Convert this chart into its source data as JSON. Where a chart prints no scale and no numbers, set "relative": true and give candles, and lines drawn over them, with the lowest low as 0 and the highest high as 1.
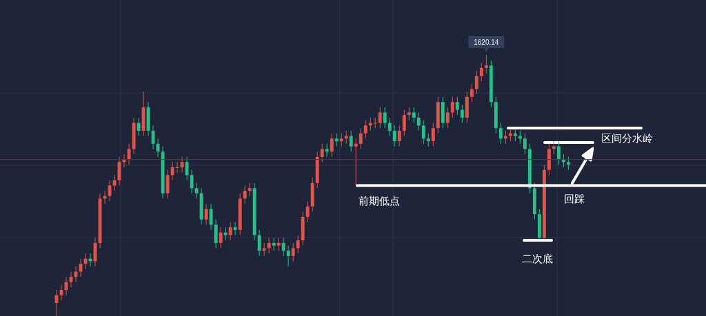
{
  "chart_data": {
    "type": "candlestick",
    "relative": true,
    "grid": true,
    "categories": [
      null,
      null,
      null,
      null,
      null,
      null,
      null,
      null,
      null,
      null,
      null,
      null,
      null,
      null,
      null,
      null,
      null,
      null,
      null,
      null,
      null,
      null,
      null,
      null,
      null,
      null,
      null,
      null,
      null,
      null,
      null,
      null,
      null,
      null,
      null,
      null,
      null,
      null,
      null,
      null,
      null,
      null,
      null,
      null,
      null,
      null,
      null,
      null,
      null,
      null,
      null,
      null,
      null,
      null,
      null,
      null,
      null,
      null,
      null,
      null,
      null,
      null,
      null,
      null,
      null,
      null,
      null,
      null,
      null,
      null,
      null,
      null,
      null,
      null,
      null,
      null,
      null,
      null,
      null,
      null,
      null,
      null,
      null,
      null,
      null,
      null,
      null,
      null,
      null,
      null,
      null,
      null,
      null,
      null,
      null,
      null,
      null,
      null,
      null,
      null,
      null,
      null,
      null,
      null,
      null,
      null,
      null
    ],
    "ohlc": [
      [
        0.05,
        0.1,
        0.0,
        0.08
      ],
      [
        0.08,
        0.12,
        0.06,
        0.1
      ],
      [
        0.1,
        0.15,
        0.08,
        0.13
      ],
      [
        0.13,
        0.17,
        0.11,
        0.15
      ],
      [
        0.15,
        0.19,
        0.13,
        0.17
      ],
      [
        0.17,
        0.22,
        0.15,
        0.2
      ],
      [
        0.2,
        0.24,
        0.18,
        0.22
      ],
      [
        0.22,
        0.24,
        0.19,
        0.21
      ],
      [
        0.21,
        0.3,
        0.19,
        0.28
      ],
      [
        0.28,
        0.47,
        0.26,
        0.45
      ],
      [
        0.45,
        0.48,
        0.43,
        0.46
      ],
      [
        0.46,
        0.52,
        0.44,
        0.5
      ],
      [
        0.5,
        0.54,
        0.48,
        0.52
      ],
      [
        0.52,
        0.61,
        0.5,
        0.59
      ],
      [
        0.59,
        0.62,
        0.57,
        0.6
      ],
      [
        0.6,
        0.66,
        0.58,
        0.64
      ],
      [
        0.64,
        0.76,
        0.62,
        0.74
      ],
      [
        0.74,
        0.76,
        0.69,
        0.71
      ],
      [
        0.71,
        0.86,
        0.69,
        0.8
      ],
      [
        0.8,
        0.82,
        0.69,
        0.71
      ],
      [
        0.71,
        0.73,
        0.64,
        0.66
      ],
      [
        0.66,
        0.68,
        0.61,
        0.63
      ],
      [
        0.63,
        0.65,
        0.45,
        0.47
      ],
      [
        0.47,
        0.56,
        0.45,
        0.54
      ],
      [
        0.54,
        0.59,
        0.52,
        0.57
      ],
      [
        0.57,
        0.59,
        0.55,
        0.57
      ],
      [
        0.57,
        0.61,
        0.55,
        0.59
      ],
      [
        0.59,
        0.61,
        0.52,
        0.54
      ],
      [
        0.54,
        0.56,
        0.47,
        0.49
      ],
      [
        0.49,
        0.51,
        0.45,
        0.47
      ],
      [
        0.47,
        0.49,
        0.35,
        0.37
      ],
      [
        0.37,
        0.43,
        0.35,
        0.41
      ],
      [
        0.41,
        0.43,
        0.33,
        0.35
      ],
      [
        0.35,
        0.37,
        0.26,
        0.28
      ],
      [
        0.28,
        0.34,
        0.26,
        0.32
      ],
      [
        0.32,
        0.34,
        0.29,
        0.31
      ],
      [
        0.31,
        0.36,
        0.29,
        0.34
      ],
      [
        0.34,
        0.36,
        0.31,
        0.33
      ],
      [
        0.33,
        0.47,
        0.31,
        0.45
      ],
      [
        0.45,
        0.5,
        0.43,
        0.48
      ],
      [
        0.48,
        0.51,
        0.46,
        0.49
      ],
      [
        0.49,
        0.51,
        0.29,
        0.31
      ],
      [
        0.31,
        0.33,
        0.23,
        0.25
      ],
      [
        0.25,
        0.28,
        0.23,
        0.26
      ],
      [
        0.26,
        0.3,
        0.24,
        0.28
      ],
      [
        0.28,
        0.3,
        0.25,
        0.27
      ],
      [
        0.27,
        0.3,
        0.25,
        0.28
      ],
      [
        0.28,
        0.3,
        0.23,
        0.25
      ],
      [
        0.25,
        0.27,
        0.19,
        0.23
      ],
      [
        0.23,
        0.28,
        0.21,
        0.26
      ],
      [
        0.26,
        0.31,
        0.24,
        0.29
      ],
      [
        0.29,
        0.4,
        0.27,
        0.38
      ],
      [
        0.38,
        0.44,
        0.36,
        0.42
      ],
      [
        0.42,
        0.53,
        0.4,
        0.51
      ],
      [
        0.51,
        0.63,
        0.49,
        0.61
      ],
      [
        0.61,
        0.66,
        0.59,
        0.64
      ],
      [
        0.64,
        0.66,
        0.61,
        0.63
      ],
      [
        0.63,
        0.7,
        0.61,
        0.68
      ],
      [
        0.68,
        0.7,
        0.65,
        0.67
      ],
      [
        0.67,
        0.7,
        0.65,
        0.68
      ],
      [
        0.68,
        0.71,
        0.66,
        0.69
      ],
      [
        0.69,
        0.71,
        0.63,
        0.65
      ],
      [
        0.65,
        0.68,
        0.5,
        0.66
      ],
      [
        0.66,
        0.72,
        0.64,
        0.7
      ],
      [
        0.7,
        0.75,
        0.68,
        0.73
      ],
      [
        0.73,
        0.76,
        0.71,
        0.74
      ],
      [
        0.74,
        0.76,
        0.72,
        0.74
      ],
      [
        0.74,
        0.8,
        0.72,
        0.78
      ],
      [
        0.78,
        0.8,
        0.72,
        0.74
      ],
      [
        0.74,
        0.76,
        0.69,
        0.71
      ],
      [
        0.71,
        0.73,
        0.65,
        0.67
      ],
      [
        0.67,
        0.73,
        0.65,
        0.71
      ],
      [
        0.71,
        0.79,
        0.69,
        0.77
      ],
      [
        0.77,
        0.8,
        0.75,
        0.78
      ],
      [
        0.78,
        0.8,
        0.74,
        0.76
      ],
      [
        0.76,
        0.78,
        0.71,
        0.73
      ],
      [
        0.73,
        0.75,
        0.66,
        0.68
      ],
      [
        0.68,
        0.7,
        0.65,
        0.67
      ],
      [
        0.67,
        0.74,
        0.65,
        0.72
      ],
      [
        0.72,
        0.84,
        0.7,
        0.82
      ],
      [
        0.82,
        0.84,
        0.72,
        0.74
      ],
      [
        0.74,
        0.8,
        0.72,
        0.78
      ],
      [
        0.78,
        0.84,
        0.76,
        0.82
      ],
      [
        0.82,
        0.84,
        0.77,
        0.79
      ],
      [
        0.79,
        0.81,
        0.74,
        0.76
      ],
      [
        0.76,
        0.86,
        0.74,
        0.84
      ],
      [
        0.84,
        0.89,
        0.82,
        0.87
      ],
      [
        0.87,
        0.94,
        0.85,
        0.92
      ],
      [
        0.92,
        0.97,
        0.9,
        0.95
      ],
      [
        0.95,
        1.0,
        0.93,
        0.96
      ],
      [
        0.96,
        0.98,
        0.8,
        0.82
      ],
      [
        0.82,
        0.84,
        0.7,
        0.72
      ],
      [
        0.72,
        0.74,
        0.66,
        0.68
      ],
      [
        0.68,
        0.71,
        0.66,
        0.69
      ],
      [
        0.69,
        0.72,
        0.67,
        0.7
      ],
      [
        0.7,
        0.72,
        0.67,
        0.69
      ],
      [
        0.69,
        0.71,
        0.66,
        0.68
      ],
      [
        0.68,
        0.7,
        0.62,
        0.64
      ],
      [
        0.64,
        0.66,
        0.47,
        0.49
      ],
      [
        0.49,
        0.51,
        0.37,
        0.39
      ],
      [
        0.39,
        0.41,
        0.29,
        0.3
      ],
      [
        0.3,
        0.58,
        0.29,
        0.56
      ],
      [
        0.56,
        0.66,
        0.54,
        0.64
      ],
      [
        0.64,
        0.67,
        0.62,
        0.65
      ],
      [
        0.65,
        0.67,
        0.58,
        0.6
      ],
      [
        0.6,
        0.62,
        0.57,
        0.59
      ],
      [
        0.59,
        0.61,
        0.56,
        0.58
      ]
    ],
    "annotations": [
      {
        "text": "1620.14",
        "y": 1.0
      },
      "回踩"
    ],
    "ref_lines": [
      {
        "axis": "y",
        "value": 0.6,
        "color": "#6b3038"
      },
      {
        "axis": "y",
        "value": 0.5,
        "label": "前期低点",
        "color": "#ffffff"
      },
      {
        "axis": "y",
        "value": 0.72,
        "label": "区间分水岭",
        "color": "#ffffff"
      },
      {
        "axis": "y",
        "value": 0.29,
        "label": "二次底",
        "color": "#ffffff"
      }
    ]
  }
}
